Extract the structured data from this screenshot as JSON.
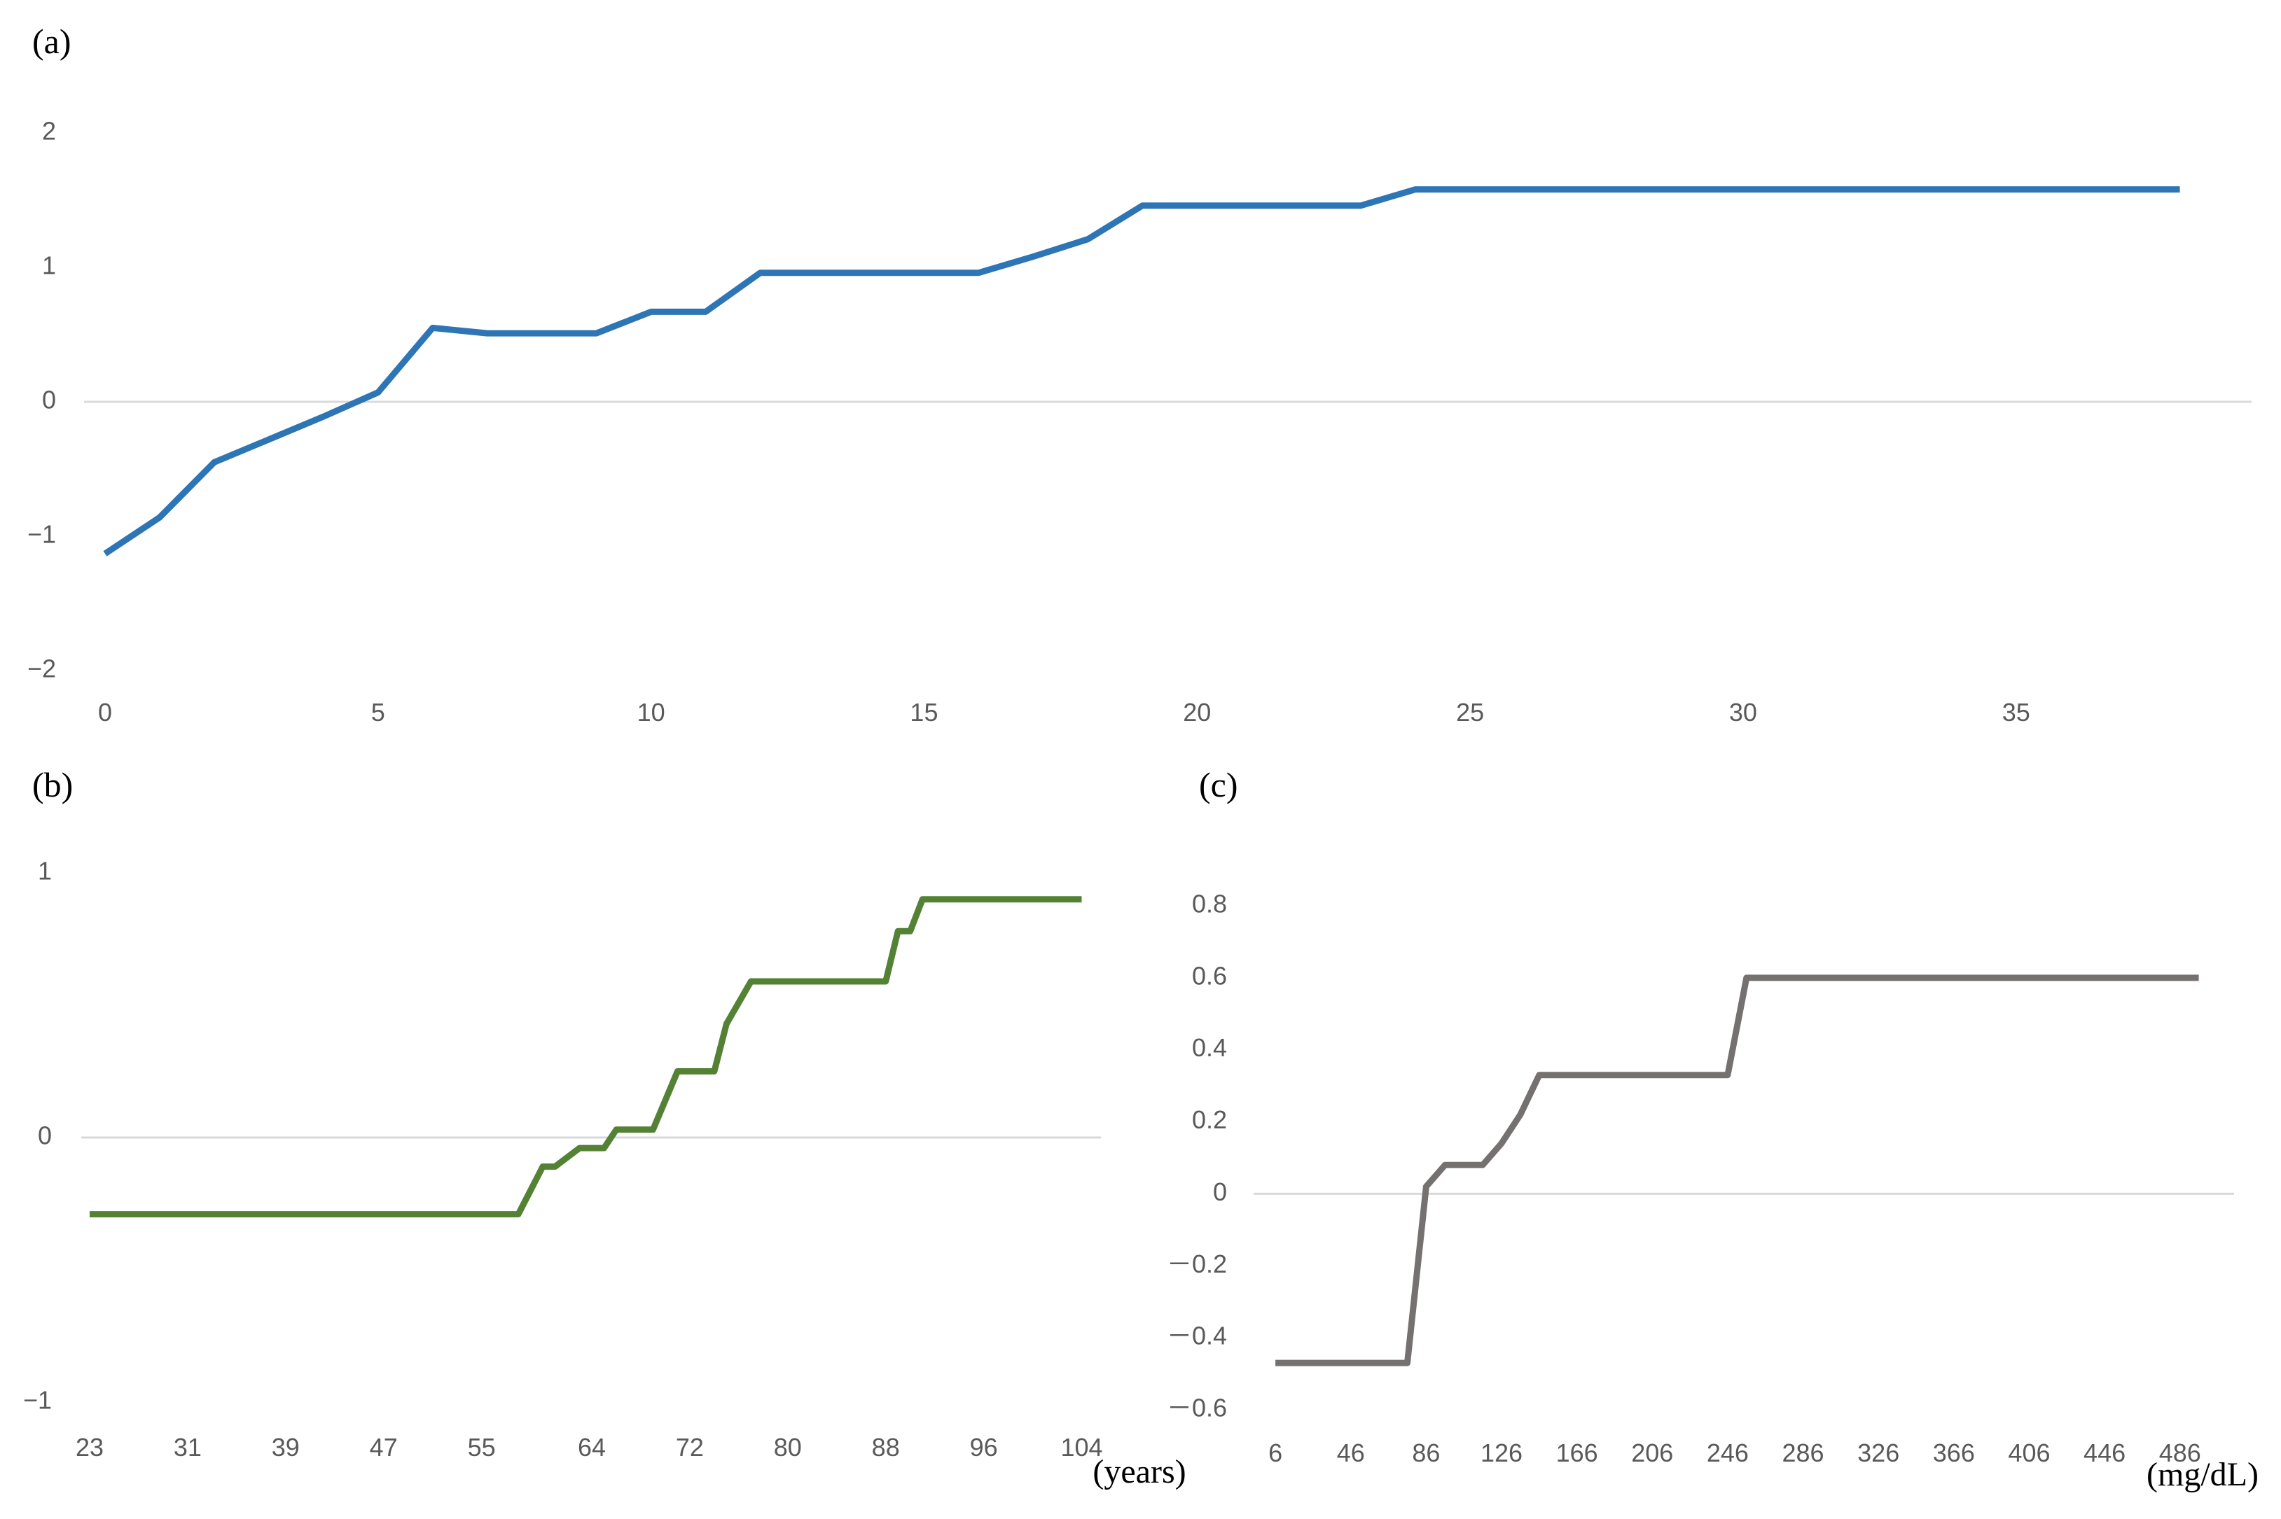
{
  "chart_data": [
    {
      "panel_label": "(a)",
      "type": "line",
      "color": "#2E75B6",
      "x": [
        0,
        1,
        2,
        3,
        4,
        5,
        6,
        7,
        8,
        9,
        10,
        11,
        12,
        13,
        14,
        15,
        16,
        17,
        18,
        19,
        20,
        21,
        22,
        23,
        24,
        25,
        26,
        27,
        28,
        29,
        30,
        31,
        32,
        33,
        34,
        35,
        36,
        37,
        38
      ],
      "y": [
        -1.13,
        -0.86,
        -0.45,
        -0.28,
        -0.11,
        0.07,
        0.55,
        0.51,
        0.51,
        0.51,
        0.67,
        0.67,
        0.96,
        0.96,
        0.96,
        0.96,
        0.96,
        1.08,
        1.21,
        1.46,
        1.46,
        1.46,
        1.46,
        1.46,
        1.58,
        1.58,
        1.58,
        1.58,
        1.58,
        1.58,
        1.58,
        1.58,
        1.58,
        1.58,
        1.58,
        1.58,
        1.58,
        1.58,
        1.58
      ],
      "xlim": [
        0,
        38.8
      ],
      "ylim": [
        -2,
        2
      ],
      "yticks": [
        2,
        1,
        0,
        -1,
        -2
      ],
      "ytick_labels": [
        "2",
        "1",
        "0",
        "−1",
        "−2"
      ],
      "xticks": [
        0,
        5,
        10,
        15,
        20,
        25,
        30,
        35
      ],
      "xtick_labels": [
        "0",
        "5",
        "10",
        "15",
        "20",
        "25",
        "30",
        "35"
      ],
      "unit_label": "",
      "zero_line": true
    },
    {
      "panel_label": "(b)",
      "type": "line",
      "color": "#548235",
      "x": [
        23,
        25,
        27,
        29,
        31,
        33,
        35,
        37,
        39,
        41,
        43,
        45,
        47,
        49,
        51,
        53,
        55,
        57,
        58,
        60,
        61,
        63,
        64,
        65,
        66,
        67,
        68,
        69,
        70,
        71,
        72,
        73,
        74,
        75,
        76,
        77,
        78,
        79,
        80,
        81,
        82,
        83,
        84,
        85,
        86,
        87,
        88,
        89,
        90,
        91,
        92,
        93,
        94,
        95,
        96,
        97,
        98,
        99,
        100,
        101,
        102,
        103,
        104
      ],
      "y": [
        -0.29,
        -0.29,
        -0.29,
        -0.29,
        -0.29,
        -0.29,
        -0.29,
        -0.29,
        -0.29,
        -0.29,
        -0.29,
        -0.29,
        -0.29,
        -0.29,
        -0.29,
        -0.29,
        -0.29,
        -0.29,
        -0.29,
        -0.11,
        -0.11,
        -0.04,
        -0.04,
        -0.04,
        0.03,
        0.03,
        0.03,
        0.03,
        0.14,
        0.25,
        0.25,
        0.25,
        0.25,
        0.43,
        0.51,
        0.59,
        0.59,
        0.59,
        0.59,
        0.59,
        0.59,
        0.59,
        0.59,
        0.59,
        0.59,
        0.59,
        0.59,
        0.78,
        0.78,
        0.9,
        0.9,
        0.9,
        0.9,
        0.9,
        0.9,
        0.9,
        0.9,
        0.9,
        0.9,
        0.9,
        0.9,
        0.9,
        0.9
      ],
      "xlim": [
        23,
        105
      ],
      "ylim": [
        -1,
        1
      ],
      "yticks": [
        1,
        0,
        -1
      ],
      "ytick_labels": [
        "1",
        "0",
        "−1"
      ],
      "xticks": [
        23,
        31,
        39,
        47,
        55,
        64,
        72,
        80,
        88,
        96,
        104
      ],
      "xtick_labels": [
        "23",
        "31",
        "39",
        "47",
        "55",
        "64",
        "72",
        "80",
        "88",
        "96",
        "104"
      ],
      "unit_label": "(years)",
      "zero_line": true
    },
    {
      "panel_label": "(c)",
      "type": "line",
      "color": "#767171",
      "x": [
        6,
        16,
        26,
        36,
        46,
        56,
        66,
        76,
        86,
        96,
        106,
        116,
        126,
        136,
        146,
        156,
        166,
        176,
        186,
        196,
        206,
        216,
        226,
        236,
        246,
        256,
        266,
        276,
        286,
        296,
        306,
        316,
        326,
        336,
        346,
        356,
        366,
        376,
        386,
        396,
        406,
        416,
        426,
        436,
        446,
        456,
        466,
        476,
        486,
        496
      ],
      "y": [
        -0.47,
        -0.47,
        -0.47,
        -0.47,
        -0.47,
        -0.47,
        -0.47,
        -0.47,
        0.02,
        0.08,
        0.08,
        0.08,
        0.14,
        0.22,
        0.33,
        0.33,
        0.33,
        0.33,
        0.33,
        0.33,
        0.33,
        0.33,
        0.33,
        0.33,
        0.33,
        0.6,
        0.6,
        0.6,
        0.6,
        0.6,
        0.6,
        0.6,
        0.6,
        0.6,
        0.6,
        0.6,
        0.6,
        0.6,
        0.6,
        0.6,
        0.6,
        0.6,
        0.6,
        0.6,
        0.6,
        0.6,
        0.6,
        0.6,
        0.6,
        0.6
      ],
      "xlim": [
        0,
        511
      ],
      "ylim": [
        -0.6,
        0.8
      ],
      "yticks": [
        0.8,
        0.6,
        0.4,
        0.2,
        0,
        -0.2,
        -0.4,
        -0.6
      ],
      "ytick_labels": [
        "0.8",
        "0.6",
        "0.4",
        "0.2",
        "0",
        "－0.2",
        "－0.4",
        "－0.6"
      ],
      "xticks": [
        6,
        46,
        86,
        126,
        166,
        206,
        246,
        286,
        326,
        366,
        406,
        446,
        486
      ],
      "xtick_labels": [
        "6",
        "46",
        "86",
        "126",
        "166",
        "206",
        "246",
        "286",
        "326",
        "366",
        "406",
        "446",
        "486"
      ],
      "unit_label": "(mg/dL)",
      "zero_line": true
    }
  ],
  "colors": {
    "zero_line": "#D9D9D9",
    "tick_text": "#595959"
  }
}
